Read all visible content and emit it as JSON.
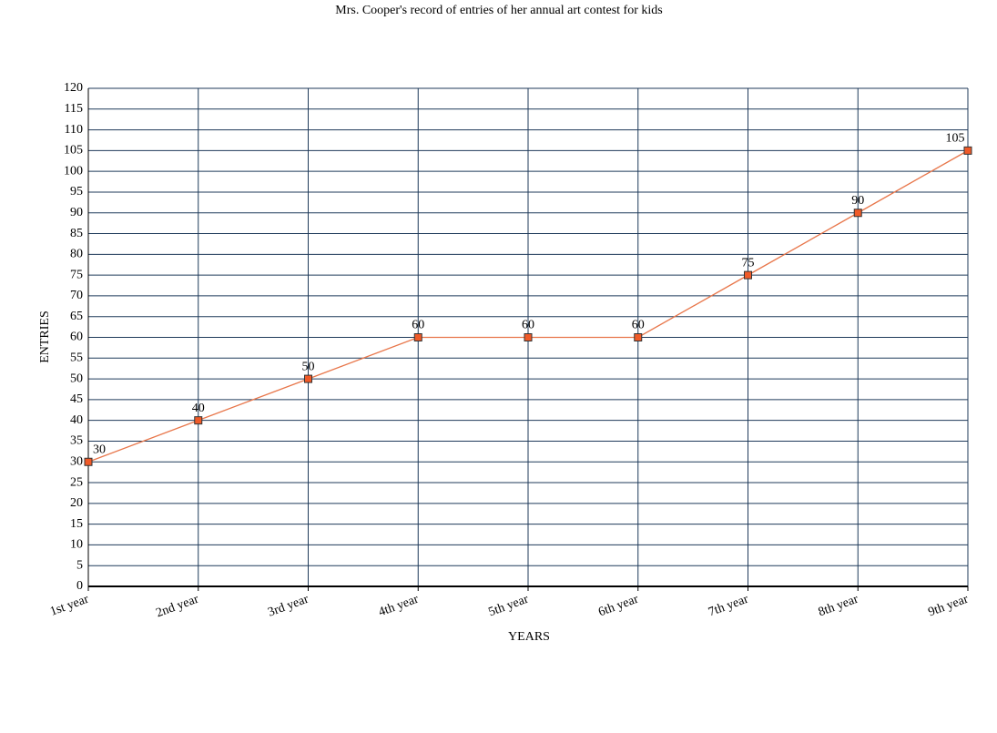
{
  "chart_data": {
    "type": "line",
    "title": "Mrs. Cooper's record of entries of her annual art contest for kids",
    "x_label": "YEARS",
    "y_label": "ENTRIES",
    "categories": [
      "1st year",
      "2nd year",
      "3rd year",
      "4th year",
      "5th year",
      "6th year",
      "7th year",
      "8th year",
      "9th year"
    ],
    "values": [
      30,
      40,
      50,
      60,
      60,
      60,
      75,
      90,
      105
    ],
    "color": "#e8764a",
    "marker_color": "#f05a28",
    "ylim": [
      0,
      120
    ],
    "yticks": [
      0,
      5,
      10,
      15,
      20,
      25,
      30,
      35,
      40,
      45,
      50,
      55,
      60,
      65,
      70,
      75,
      80,
      85,
      90,
      95,
      100,
      105,
      110,
      115,
      120
    ],
    "grid": true
  }
}
